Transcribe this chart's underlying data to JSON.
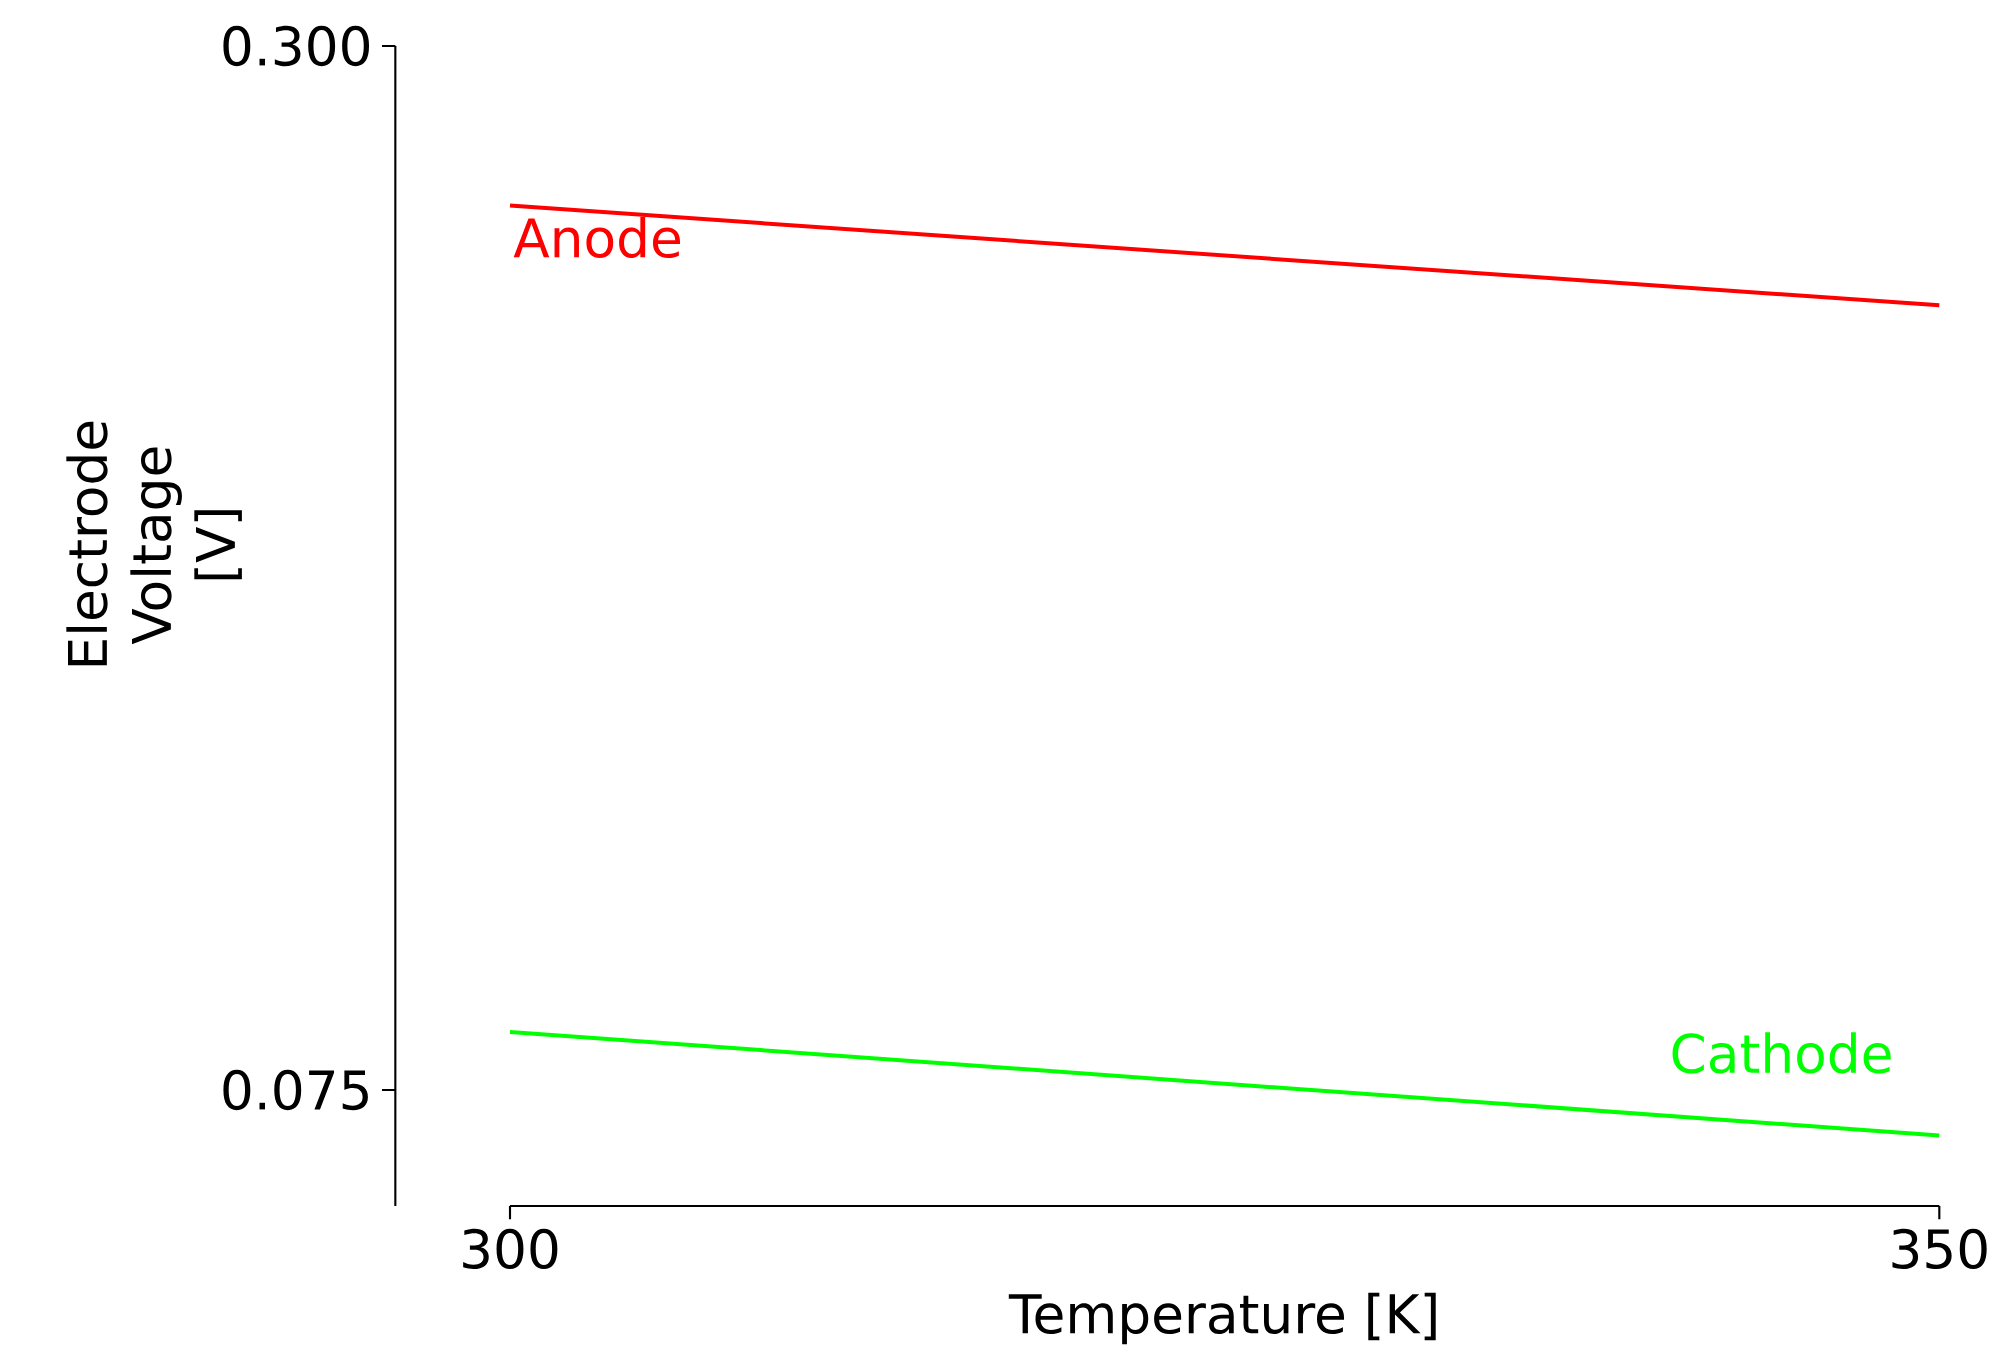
{
  "chart_data": {
    "type": "line",
    "xlabel": "Temperature [K]",
    "ylabel": "Electrode Voltage [V]",
    "x": [
      300,
      350
    ],
    "series": [
      {
        "name": "Anode",
        "color": "#ff0000",
        "values": [
          0.2656,
          0.2441
        ]
      },
      {
        "name": "Cathode",
        "color": "#00ff00",
        "values": [
          0.0875,
          0.0652
        ]
      }
    ],
    "xlim": [
      300,
      350
    ],
    "ylim": [
      0.05,
      0.3
    ],
    "xticks": [
      300,
      350
    ],
    "yticks": [
      {
        "value": 0.075,
        "label": "0.075"
      },
      {
        "value": 0.3,
        "label": "0.300"
      }
    ],
    "grid": false,
    "legend": false,
    "marker": "none",
    "line_style": "solid"
  }
}
